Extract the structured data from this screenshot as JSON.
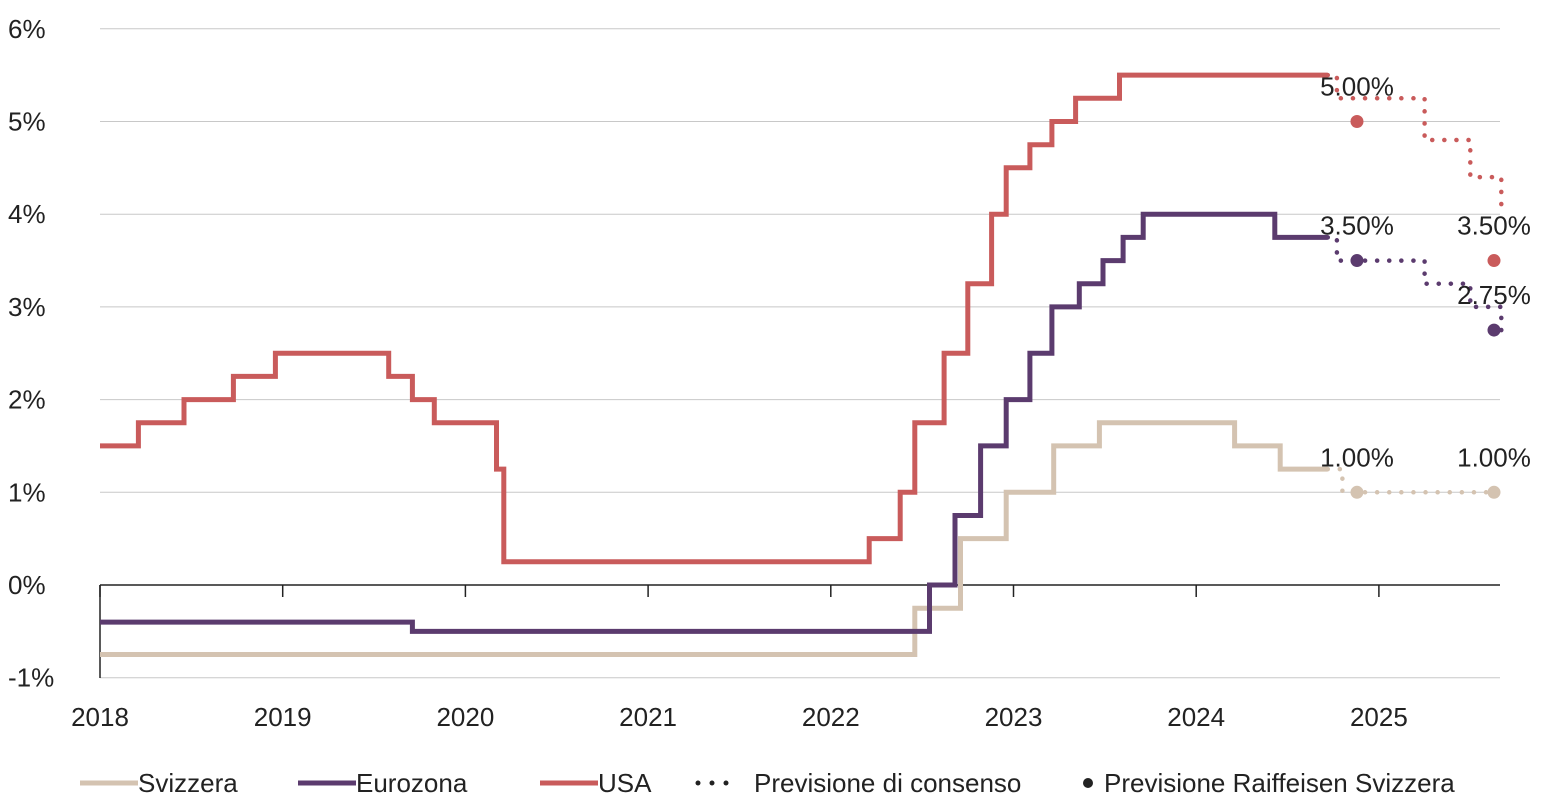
{
  "chart_data": {
    "type": "line",
    "title": "",
    "xlabel": "",
    "ylabel": "",
    "xlim": [
      2018.0,
      2025.67
    ],
    "ylim": [
      -1,
      6
    ],
    "y_ticks": [
      -1,
      0,
      1,
      2,
      3,
      4,
      5,
      6
    ],
    "y_tick_labels": [
      "-1%",
      "0%",
      "1%",
      "2%",
      "3%",
      "4%",
      "5%",
      "6%"
    ],
    "x_ticks": [
      2018,
      2019,
      2020,
      2021,
      2022,
      2023,
      2024,
      2025
    ],
    "x_tick_labels": [
      "2018",
      "2019",
      "2020",
      "2021",
      "2022",
      "2023",
      "2024",
      "2025"
    ],
    "grid": "horizontal",
    "legend_position": "bottom",
    "series": [
      {
        "name": "Svizzera",
        "color": "#d4c3b1",
        "style": "step",
        "x": [
          2018.0,
          2022.46,
          2022.71,
          2022.96,
          2023.22,
          2023.47,
          2024.21,
          2024.46,
          2024.72
        ],
        "values": [
          -0.75,
          -0.25,
          0.5,
          1.0,
          1.5,
          1.75,
          1.5,
          1.25,
          1.25
        ]
      },
      {
        "name": "Eurozona",
        "color": "#5b3b6e",
        "style": "step",
        "x": [
          2018.0,
          2019.71,
          2022.54,
          2022.68,
          2022.82,
          2022.96,
          2023.09,
          2023.21,
          2023.36,
          2023.49,
          2023.6,
          2023.71,
          2024.43,
          2024.72
        ],
        "values": [
          -0.4,
          -0.5,
          0.0,
          0.75,
          1.5,
          2.0,
          2.5,
          3.0,
          3.25,
          3.5,
          3.75,
          4.0,
          3.75,
          3.75
        ]
      },
      {
        "name": "USA",
        "color": "#c95b5b",
        "style": "step",
        "x": [
          2018.0,
          2018.21,
          2018.46,
          2018.73,
          2018.96,
          2019.58,
          2019.71,
          2019.83,
          2020.17,
          2020.21,
          2022.21,
          2022.38,
          2022.46,
          2022.62,
          2022.75,
          2022.88,
          2022.96,
          2023.09,
          2023.21,
          2023.34,
          2023.58,
          2024.72
        ],
        "values": [
          1.5,
          1.75,
          2.0,
          2.25,
          2.5,
          2.25,
          2.0,
          1.75,
          1.25,
          0.25,
          0.5,
          1.0,
          1.75,
          2.5,
          3.25,
          4.0,
          4.5,
          4.75,
          5.0,
          5.25,
          5.5,
          5.5
        ]
      }
    ],
    "forecast_consensus": [
      {
        "region": "USA",
        "x": [
          2024.72,
          2024.77,
          2025.0,
          2025.25,
          2025.5,
          2025.67
        ],
        "values": [
          5.5,
          5.25,
          5.25,
          4.8,
          4.4,
          4.0
        ]
      },
      {
        "region": "Eurozona",
        "x": [
          2024.72,
          2024.77,
          2025.0,
          2025.25,
          2025.5,
          2025.67
        ],
        "values": [
          3.75,
          3.5,
          3.5,
          3.25,
          3.0,
          2.75
        ]
      },
      {
        "region": "Svizzera",
        "x": [
          2024.72,
          2024.8,
          2025.0,
          2025.67
        ],
        "values": [
          1.25,
          1.0,
          1.0,
          1.0
        ]
      }
    ],
    "forecast_raiffeisen": [
      {
        "region": "USA",
        "x": [
          2024.88,
          2025.63
        ],
        "values": [
          5.0,
          3.5
        ]
      },
      {
        "region": "Eurozona",
        "x": [
          2024.88,
          2025.63
        ],
        "values": [
          3.5,
          2.75
        ]
      },
      {
        "region": "Svizzera",
        "x": [
          2024.88,
          2025.63
        ],
        "values": [
          1.0,
          1.0
        ]
      }
    ],
    "annotations": [
      {
        "text": "5.00%",
        "x": 2024.88,
        "y": 5.0
      },
      {
        "text": "3.50%",
        "x": 2024.88,
        "y": 3.5
      },
      {
        "text": "1.00%",
        "x": 2024.88,
        "y": 1.0
      },
      {
        "text": "3.50%",
        "x": 2025.63,
        "y": 3.5
      },
      {
        "text": "2.75%",
        "x": 2025.63,
        "y": 2.75
      },
      {
        "text": "1.00%",
        "x": 2025.63,
        "y": 1.0
      }
    ],
    "legend": [
      {
        "label": "Svizzera",
        "kind": "line",
        "color": "#d4c3b1"
      },
      {
        "label": "Eurozona",
        "kind": "line",
        "color": "#5b3b6e"
      },
      {
        "label": "USA",
        "kind": "line",
        "color": "#c95b5b"
      },
      {
        "label": "Previsione di consenso",
        "kind": "dots",
        "color": "#222222"
      },
      {
        "label": "Previsione Raiffeisen Svizzera",
        "kind": "marker",
        "color": "#222222"
      }
    ],
    "colors": {
      "grid": "#c8c8c8",
      "axis": "#222222",
      "text": "#222222"
    }
  }
}
